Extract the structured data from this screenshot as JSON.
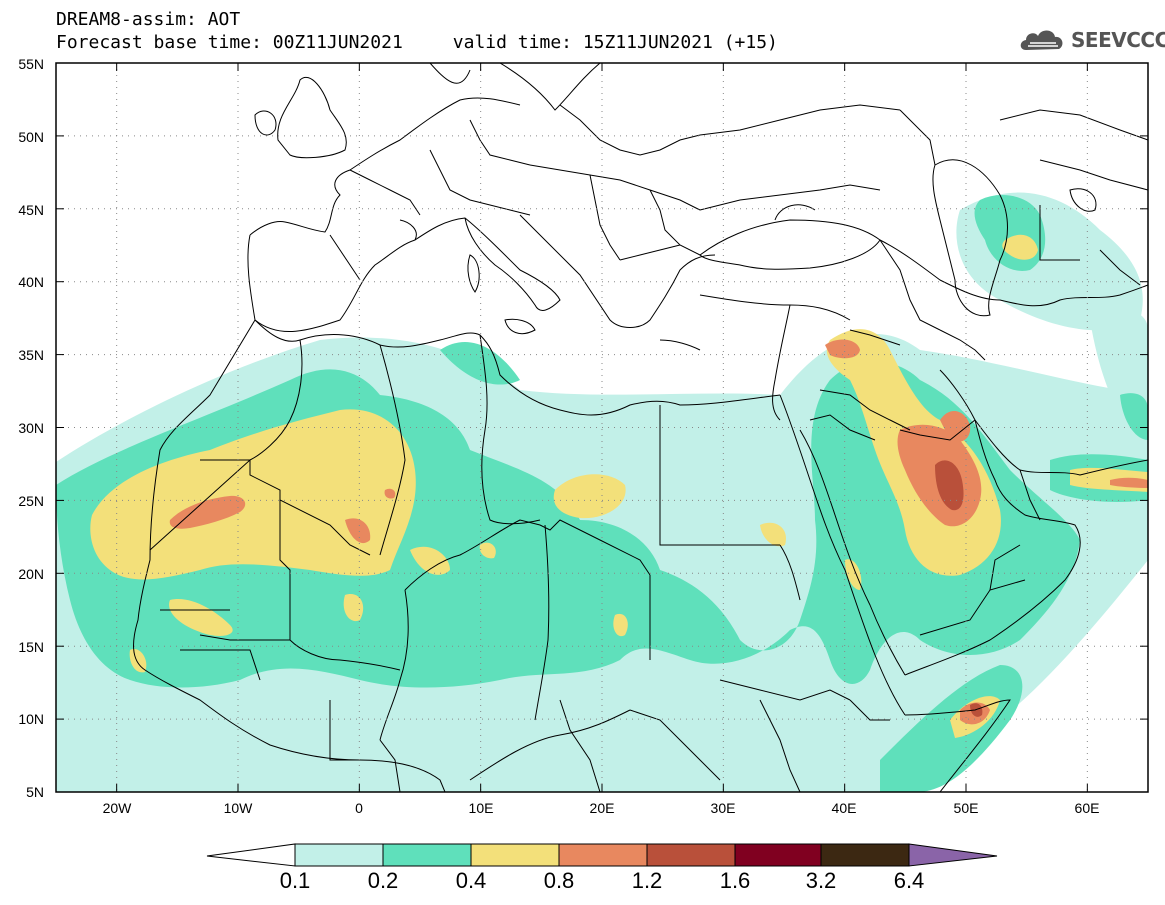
{
  "title": {
    "line1": "DREAM8-assim: AOT",
    "base_time": "Forecast base time: 00Z11JUN2021",
    "valid_time": "valid time: 15Z11JUN2021 (+15)"
  },
  "logo": {
    "text": "SEEVCCC",
    "icon": "cloud-icon"
  },
  "axes": {
    "lat_labels": [
      "55N",
      "50N",
      "45N",
      "40N",
      "35N",
      "30N",
      "25N",
      "20N",
      "15N",
      "10N",
      "5N"
    ],
    "lon_labels": [
      "20W",
      "10W",
      "0",
      "10E",
      "20E",
      "30E",
      "40E",
      "50E",
      "60E"
    ],
    "lon_range": [
      -25,
      65
    ],
    "lat_range": [
      5,
      55
    ],
    "grid": "dotted"
  },
  "colorbar": {
    "labels": [
      "0.1",
      "0.2",
      "0.4",
      "0.8",
      "1.2",
      "1.6",
      "3.2",
      "6.4"
    ],
    "colors": [
      "#ffffff",
      "#c2f0e8",
      "#5fe0bb",
      "#f3e07a",
      "#e8885f",
      "#b9503a",
      "#800020",
      "#3c2812",
      "#8a64a8"
    ]
  },
  "aot_levels": {
    "very_low": "#c2f0e8",
    "low": "#5fe0bb",
    "moderate": "#f3e07a",
    "high": "#e8885f",
    "very_high": "#b9503a"
  }
}
